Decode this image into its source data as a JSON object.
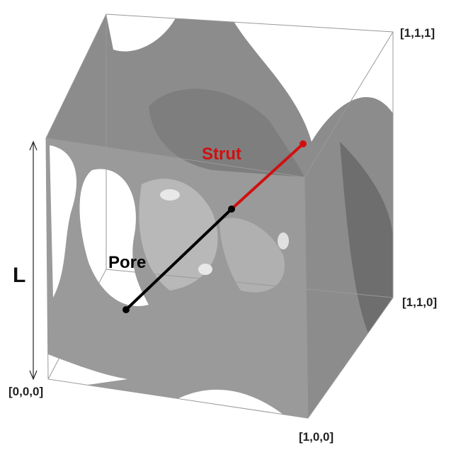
{
  "labels": {
    "corner_111": "[1,1,1]",
    "corner_110": "[1,1,0]",
    "corner_000": "[0,0,0]",
    "corner_100": "[1,0,0]",
    "length": "L",
    "strut": "Strut",
    "pore": "Pore"
  }
}
